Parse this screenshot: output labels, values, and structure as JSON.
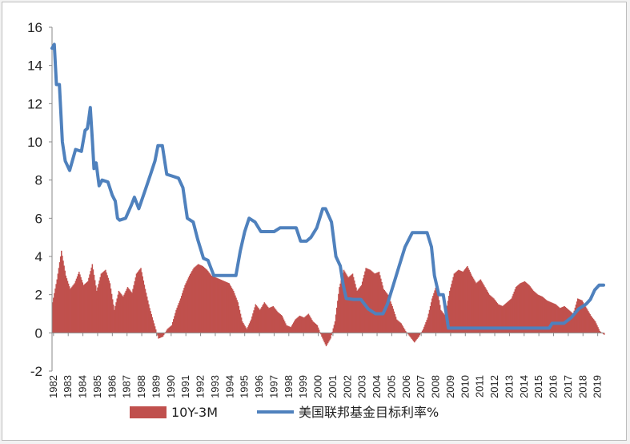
{
  "chart_data": {
    "type": "bar+line",
    "title": "",
    "xlabel": "",
    "ylabel": "",
    "ylim": [
      -2,
      16
    ],
    "yticks": [
      -2,
      0,
      2,
      4,
      6,
      8,
      10,
      12,
      14,
      16
    ],
    "xlim": [
      1982,
      2019.5
    ],
    "xtick_labels": [
      "1982",
      "1983",
      "1984",
      "1985",
      "1986",
      "1987",
      "1988",
      "1989",
      "1990",
      "1991",
      "1992",
      "1993",
      "1994",
      "1995",
      "1996",
      "1997",
      "1998",
      "1999",
      "2000",
      "2001",
      "2002",
      "2003",
      "2004",
      "2005",
      "2006",
      "2007",
      "2008",
      "2009",
      "2010",
      "2011",
      "2012",
      "2013",
      "2014",
      "2015",
      "2016",
      "2017",
      "2018",
      "2019"
    ],
    "grid": false,
    "legend_position": "bottom",
    "colors": {
      "bar": "#c0504d",
      "line": "#4f81bd"
    },
    "series": [
      {
        "name": "10Y-3M",
        "kind": "bar",
        "x": [
          1982.0,
          1982.3,
          1982.6,
          1982.9,
          1983.2,
          1983.5,
          1983.8,
          1984.1,
          1984.4,
          1984.7,
          1985.0,
          1985.3,
          1985.6,
          1985.9,
          1986.2,
          1986.5,
          1986.8,
          1987.1,
          1987.4,
          1987.7,
          1988.0,
          1988.3,
          1988.6,
          1988.9,
          1989.2,
          1989.5,
          1989.8,
          1990.1,
          1990.4,
          1990.7,
          1991.0,
          1991.3,
          1991.6,
          1991.9,
          1992.2,
          1992.5,
          1992.8,
          1993.1,
          1993.4,
          1993.7,
          1994.0,
          1994.3,
          1994.6,
          1994.9,
          1995.2,
          1995.5,
          1995.8,
          1996.1,
          1996.4,
          1996.7,
          1997.0,
          1997.3,
          1997.6,
          1997.9,
          1998.2,
          1998.5,
          1998.8,
          1999.1,
          1999.4,
          1999.7,
          2000.0,
          2000.3,
          2000.6,
          2000.9,
          2001.2,
          2001.5,
          2001.8,
          2002.1,
          2002.4,
          2002.7,
          2003.0,
          2003.3,
          2003.6,
          2003.9,
          2004.2,
          2004.5,
          2004.8,
          2005.1,
          2005.4,
          2005.7,
          2006.0,
          2006.3,
          2006.6,
          2006.9,
          2007.2,
          2007.5,
          2007.8,
          2008.1,
          2008.4,
          2008.7,
          2009.0,
          2009.3,
          2009.6,
          2009.9,
          2010.2,
          2010.5,
          2010.8,
          2011.1,
          2011.4,
          2011.7,
          2012.0,
          2012.3,
          2012.6,
          2012.9,
          2013.2,
          2013.5,
          2013.8,
          2014.1,
          2014.4,
          2014.7,
          2015.0,
          2015.3,
          2015.6,
          2015.9,
          2016.2,
          2016.5,
          2016.8,
          2017.1,
          2017.4,
          2017.7,
          2018.0,
          2018.3,
          2018.6,
          2018.9,
          2019.2,
          2019.5
        ],
        "values": [
          1.6,
          2.8,
          4.3,
          3.0,
          2.3,
          2.6,
          3.2,
          2.5,
          2.7,
          3.6,
          2.2,
          3.1,
          3.3,
          2.6,
          1.2,
          2.2,
          1.9,
          2.4,
          2.1,
          3.1,
          3.4,
          2.3,
          1.3,
          0.5,
          -0.3,
          -0.2,
          0.2,
          0.4,
          1.2,
          1.8,
          2.5,
          3.0,
          3.4,
          3.6,
          3.5,
          3.3,
          3.0,
          2.9,
          2.8,
          2.7,
          2.6,
          2.2,
          1.6,
          0.6,
          0.2,
          0.7,
          1.5,
          1.2,
          1.6,
          1.3,
          1.4,
          1.1,
          0.9,
          0.4,
          0.3,
          0.7,
          0.9,
          0.8,
          1.0,
          0.6,
          0.4,
          -0.2,
          -0.7,
          -0.3,
          0.6,
          2.4,
          3.3,
          2.9,
          3.1,
          2.2,
          2.5,
          3.4,
          3.3,
          3.1,
          3.2,
          2.3,
          2.0,
          1.4,
          0.7,
          0.5,
          0.1,
          -0.2,
          -0.5,
          -0.2,
          0.2,
          0.8,
          1.8,
          2.5,
          1.2,
          0.9,
          2.2,
          3.1,
          3.3,
          3.2,
          3.5,
          3.0,
          2.6,
          2.8,
          2.4,
          2.0,
          1.8,
          1.5,
          1.4,
          1.6,
          1.8,
          2.4,
          2.6,
          2.7,
          2.5,
          2.2,
          2.0,
          1.9,
          1.7,
          1.6,
          1.5,
          1.3,
          1.4,
          1.2,
          1.0,
          1.8,
          1.7,
          1.3,
          0.9,
          0.6,
          0.1,
          -0.1
        ]
      },
      {
        "name": "美国联邦基金目标利率%",
        "kind": "line",
        "x": [
          1982.0,
          1982.15,
          1982.3,
          1982.5,
          1982.7,
          1982.9,
          1983.2,
          1983.6,
          1984.0,
          1984.25,
          1984.4,
          1984.5,
          1984.6,
          1984.75,
          1984.85,
          1985.0,
          1985.2,
          1985.4,
          1985.8,
          1986.1,
          1986.3,
          1986.45,
          1986.6,
          1987.0,
          1987.4,
          1987.6,
          1987.9,
          1988.3,
          1988.7,
          1989.0,
          1989.2,
          1989.5,
          1989.8,
          1990.2,
          1990.6,
          1990.9,
          1991.2,
          1991.6,
          1991.9,
          1992.3,
          1992.6,
          1993.0,
          1993.5,
          1994.0,
          1994.5,
          1994.8,
          1995.1,
          1995.4,
          1995.8,
          1996.2,
          1996.8,
          1997.1,
          1997.5,
          1998.1,
          1998.6,
          1998.9,
          1999.3,
          1999.6,
          2000.0,
          2000.4,
          2000.6,
          2001.0,
          2001.3,
          2001.6,
          2001.8,
          2002.0,
          2002.5,
          2003.0,
          2003.5,
          2004.0,
          2004.5,
          2004.8,
          2005.2,
          2005.6,
          2006.0,
          2006.5,
          2007.0,
          2007.5,
          2007.8,
          2008.0,
          2008.3,
          2008.6,
          2008.95,
          2009.2,
          2010,
          2012,
          2014,
          2015.8,
          2016.0,
          2016.8,
          2017.3,
          2017.8,
          2018.3,
          2018.6,
          2018.9,
          2019.2,
          2019.5
        ],
        "values": [
          14.9,
          15.1,
          13.0,
          13.0,
          10.0,
          9.0,
          8.5,
          9.6,
          9.5,
          10.6,
          10.7,
          11.2,
          11.8,
          10.0,
          8.6,
          8.9,
          7.7,
          8.0,
          7.9,
          7.2,
          6.9,
          6.0,
          5.9,
          6.0,
          6.7,
          7.1,
          6.5,
          7.4,
          8.3,
          9.0,
          9.8,
          9.8,
          8.3,
          8.2,
          8.1,
          7.6,
          6.0,
          5.8,
          4.9,
          3.9,
          3.8,
          3.0,
          3.0,
          3.0,
          3.0,
          4.3,
          5.3,
          6.0,
          5.8,
          5.3,
          5.3,
          5.3,
          5.5,
          5.5,
          5.5,
          4.8,
          4.8,
          5.0,
          5.5,
          6.5,
          6.5,
          5.8,
          4.0,
          3.5,
          2.5,
          1.8,
          1.75,
          1.75,
          1.25,
          1.0,
          1.0,
          1.5,
          2.5,
          3.5,
          4.5,
          5.25,
          5.25,
          5.25,
          4.5,
          3.0,
          2.0,
          2.0,
          0.25,
          0.25,
          0.25,
          0.25,
          0.25,
          0.25,
          0.5,
          0.5,
          0.8,
          1.25,
          1.5,
          1.75,
          2.25,
          2.5,
          2.5
        ]
      }
    ]
  }
}
